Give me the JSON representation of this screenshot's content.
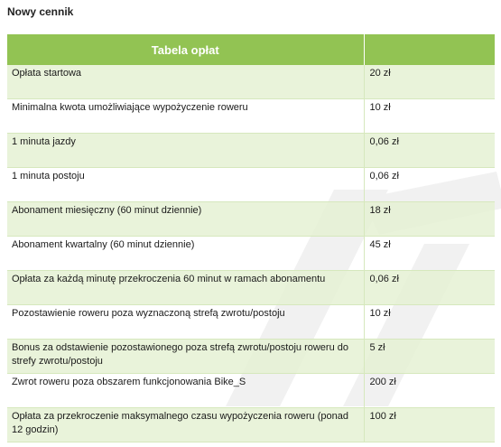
{
  "heading": "Nowy cennik",
  "table": {
    "header": "Tabela opłat",
    "rows": [
      {
        "label": "Opłata startowa",
        "value": "20 zł"
      },
      {
        "label": "Minimalna kwota umożliwiające wypożyczenie roweru",
        "value": "10 zł"
      },
      {
        "label": "1 minuta jazdy",
        "value": "0,06 zł"
      },
      {
        "label": "1 minuta postoju",
        "value": "0,06 zł"
      },
      {
        "label": "Abonament miesięczny (60 minut dziennie)",
        "value": "18 zł"
      },
      {
        "label": "Abonament kwartalny (60 minut dziennie)",
        "value": "45 zł"
      },
      {
        "label": "Opłata za każdą minutę przekroczenia 60 minut w ramach abonamentu",
        "value": "0,06 zł"
      },
      {
        "label": "Pozostawienie roweru poza wyznaczoną strefą zwrotu/postoju",
        "value": "10 zł"
      },
      {
        "label": "Bonus za odstawienie pozostawionego poza strefą zwrotu/postoju roweru do strefy zwrotu/postoju",
        "value": "5 zł"
      },
      {
        "label": "Zwrot roweru poza obszarem funkcjonowania Bike_S",
        "value": "200 zł"
      },
      {
        "label": "Opłata za przekroczenie maksymalnego czasu wypożyczenia roweru (ponad 12 godzin)",
        "value": "100 zł"
      }
    ]
  },
  "colors": {
    "header_bg": "#92c353",
    "odd_row_bg": "#e5f1d3",
    "border": "#d6e8bd"
  }
}
